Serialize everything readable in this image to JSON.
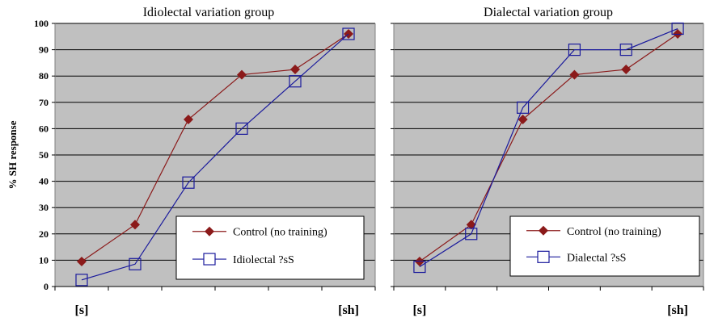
{
  "chart_data": [
    {
      "type": "line",
      "title": "Idiolectal variation group",
      "ylabel": "% SH response",
      "xlabel": "",
      "x_end_labels": [
        "[s]",
        "[sh]"
      ],
      "ylim": [
        0,
        100
      ],
      "yticks": [
        "0",
        "10",
        "20",
        "30",
        "40",
        "50",
        "60",
        "70",
        "80",
        "90",
        "100"
      ],
      "x": [
        1,
        2,
        3,
        4,
        5,
        6
      ],
      "grid": true,
      "legend_position": "bottom-right",
      "series": [
        {
          "name": "Control (no training)",
          "values": [
            9.5,
            23.5,
            63.5,
            80.5,
            82.5,
            96
          ],
          "color": "#8b1a1a",
          "marker": "diamond"
        },
        {
          "name": "Idiolectal ?sS",
          "values": [
            2.5,
            8.5,
            39.5,
            60,
            78,
            96
          ],
          "color": "#1a1a9c",
          "marker": "square"
        }
      ]
    },
    {
      "type": "line",
      "title": "Dialectal variation group",
      "xlabel": "",
      "x_end_labels": [
        "[s]",
        "[sh]"
      ],
      "ylim": [
        0,
        100
      ],
      "x": [
        1,
        2,
        3,
        4,
        5,
        6
      ],
      "grid": true,
      "legend_position": "bottom-right",
      "series": [
        {
          "name": "Control (no training)",
          "values": [
            9.5,
            23.5,
            63.5,
            80.5,
            82.5,
            96
          ],
          "color": "#8b1a1a",
          "marker": "diamond"
        },
        {
          "name": "Dialectal ?sS",
          "values": [
            7.5,
            20,
            68,
            90,
            90,
            98
          ],
          "color": "#1a1a9c",
          "marker": "square"
        }
      ]
    }
  ],
  "colors": {
    "plot_bg": "#c0c0c0",
    "grid": "#000000"
  }
}
